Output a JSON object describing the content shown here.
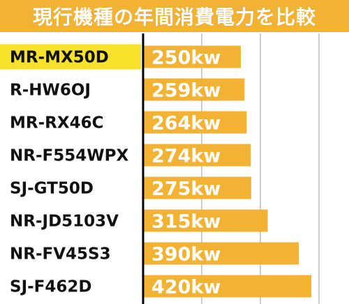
{
  "banner": {
    "title": "現行機種の年間消費電力を比較"
  },
  "colors": {
    "accent": "#f2b233",
    "highlight": "#f7e12a",
    "grid": "#aaaaaa",
    "axis": "#000000",
    "label": "#111111",
    "value_text": "#ffffff"
  },
  "chart_data": {
    "type": "bar",
    "orientation": "horizontal",
    "title": "現行機種の年間消費電力を比較",
    "categories": [
      "MR-MX50D",
      "R-HW6OJ",
      "MR-RX46C",
      "NR-F554WPX",
      "SJ-GT50D",
      "NR-JD5103V",
      "NR-FV45S3",
      "SJ-F462D"
    ],
    "values": [
      250,
      259,
      264,
      274,
      275,
      315,
      390,
      420
    ],
    "value_labels": [
      "250kw",
      "259kw",
      "264kw",
      "274kw",
      "275kw",
      "315kw",
      "390kw",
      "420kw"
    ],
    "highlighted_category": "MR-MX50D",
    "grid": true,
    "legend": "none"
  }
}
